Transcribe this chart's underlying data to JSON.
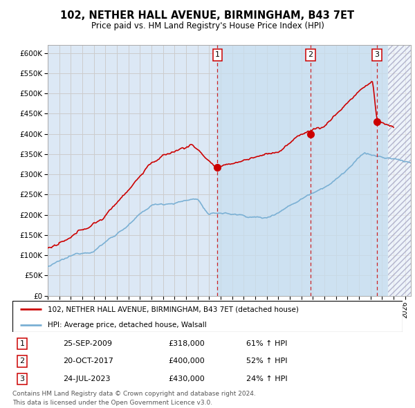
{
  "title": "102, NETHER HALL AVENUE, BIRMINGHAM, B43 7ET",
  "subtitle": "Price paid vs. HM Land Registry's House Price Index (HPI)",
  "ylabel_ticks": [
    0,
    50000,
    100000,
    150000,
    200000,
    250000,
    300000,
    350000,
    400000,
    450000,
    500000,
    550000,
    600000
  ],
  "ylabel_labels": [
    "£0",
    "£50K",
    "£100K",
    "£150K",
    "£200K",
    "£250K",
    "£300K",
    "£350K",
    "£400K",
    "£450K",
    "£500K",
    "£550K",
    "£600K"
  ],
  "xmin": 1995.0,
  "xmax": 2026.5,
  "ymin": 0,
  "ymax": 620000,
  "sale_dates": [
    2009.73,
    2017.79,
    2023.56
  ],
  "sale_prices": [
    318000,
    400000,
    430000
  ],
  "sale_labels": [
    "1",
    "2",
    "3"
  ],
  "sale_info": [
    {
      "num": "1",
      "date": "25-SEP-2009",
      "price": "£318,000",
      "hpi": "61% ↑ HPI"
    },
    {
      "num": "2",
      "date": "20-OCT-2017",
      "price": "£400,000",
      "hpi": "52% ↑ HPI"
    },
    {
      "num": "3",
      "date": "24-JUL-2023",
      "price": "£430,000",
      "hpi": "24% ↑ HPI"
    }
  ],
  "legend_line1": "102, NETHER HALL AVENUE, BIRMINGHAM, B43 7ET (detached house)",
  "legend_line2": "HPI: Average price, detached house, Walsall",
  "footer1": "Contains HM Land Registry data © Crown copyright and database right 2024.",
  "footer2": "This data is licensed under the Open Government Licence v3.0.",
  "line_color_red": "#cc0000",
  "line_color_blue": "#7ab0d4",
  "future_shade_start": 2024.5,
  "sale1_shade_start": 2009.73,
  "bg_color": "#ffffff",
  "grid_color": "#cccccc",
  "plot_bg": "#dce8f5"
}
